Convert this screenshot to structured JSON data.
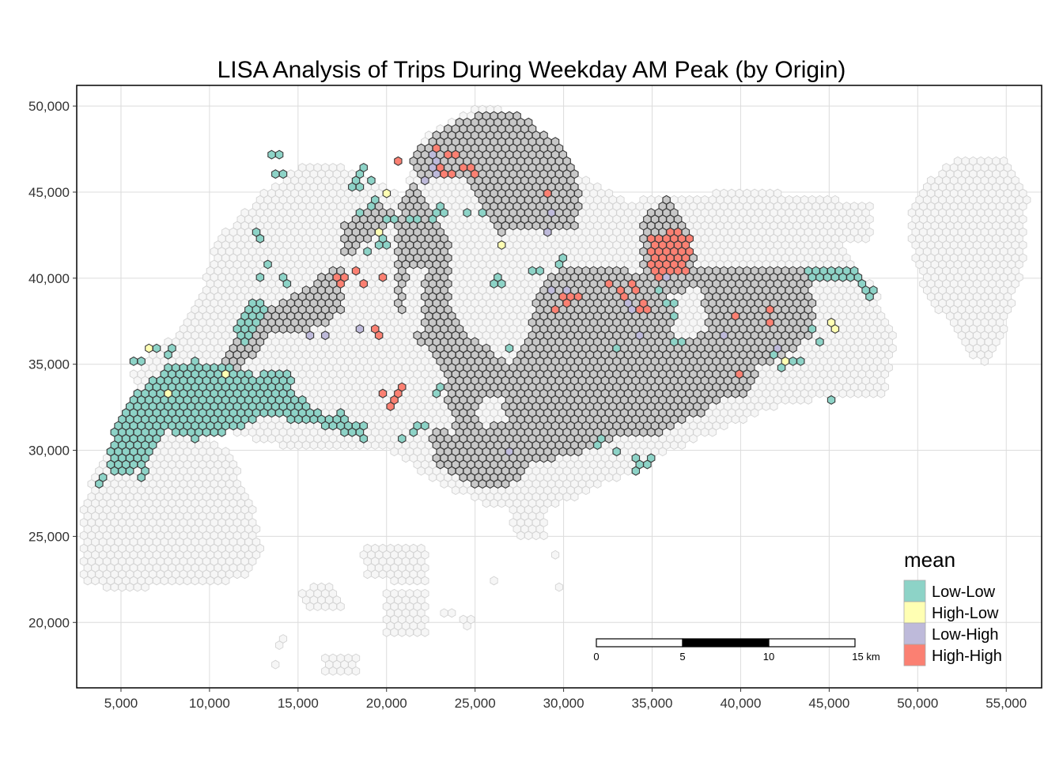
{
  "chart_data": {
    "type": "map",
    "title": "LISA Analysis of Trips During Weekday AM Peak (by Origin)",
    "x_ticks": [
      "5,000",
      "10,000",
      "15,000",
      "20,000",
      "25,000",
      "30,000",
      "35,000",
      "40,000",
      "45,000",
      "50,000",
      "55,000"
    ],
    "x_tick_values": [
      5000,
      10000,
      15000,
      20000,
      25000,
      30000,
      35000,
      40000,
      45000,
      50000,
      55000
    ],
    "y_ticks": [
      "20,000",
      "25,000",
      "30,000",
      "35,000",
      "40,000",
      "45,000",
      "50,000"
    ],
    "y_tick_values": [
      20000,
      25000,
      30000,
      35000,
      40000,
      45000,
      50000
    ],
    "xlim": [
      2500,
      57000
    ],
    "ylim": [
      16200,
      51200
    ],
    "grid": true,
    "legend": {
      "title": "mean",
      "position": "bottom-right",
      "items": [
        {
          "label": "Low-Low",
          "color": "#8DD3C7"
        },
        {
          "label": "High-Low",
          "color": "#FFFFB3"
        },
        {
          "label": "Low-High",
          "color": "#BEBADA"
        },
        {
          "label": "High-High",
          "color": "#FB8072"
        }
      ]
    },
    "insignificant_color": "#C8C8C8",
    "hexagon_size_m": 250,
    "scale_bar": {
      "labels": [
        "0",
        "5",
        "10",
        "15 km"
      ],
      "unit": "km",
      "max": 15
    }
  }
}
